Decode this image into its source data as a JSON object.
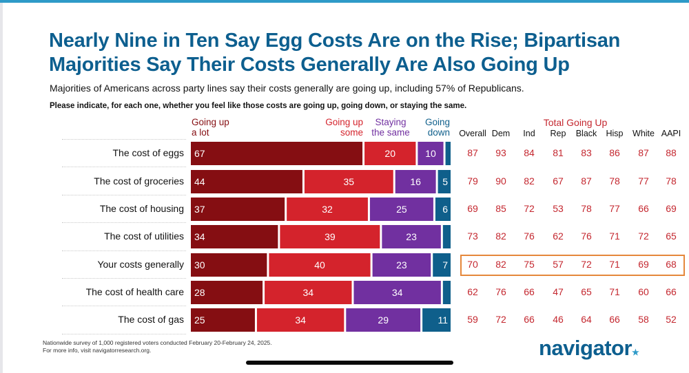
{
  "header": {
    "title_line1": "Nearly Nine in Ten Say Egg Costs Are on the Rise; Bipartisan",
    "title_line2": "Majorities Say Their Costs Generally Are Also Going Up",
    "subtitle": "Majorities of Americans across party lines say their costs generally are going up, including 57% of Republicans.",
    "question": "Please indicate, for each one, whether you feel like those costs are going up, going down, or staying the same."
  },
  "colors": {
    "going_up_a_lot": "#850e12",
    "going_up_some": "#d4232c",
    "staying_the_same": "#7130a0",
    "going_down": "#0f5f8b",
    "total_text": "#c4272f",
    "highlight": "#e5873a",
    "title": "#0d5f8f"
  },
  "chart_data": {
    "type": "bar",
    "orientation": "horizontal",
    "stacked": true,
    "title": "Nearly Nine in Ten Say Egg Costs Are on the Rise; Bipartisan Majorities Say Their Costs Generally Are Also Going Up",
    "categories": [
      "The cost of eggs",
      "The cost of groceries",
      "The cost of housing",
      "The cost of utilities",
      "Your costs generally",
      "The cost of health care",
      "The cost of gas"
    ],
    "series": [
      {
        "name": "Going up a lot",
        "legend_line1": "Going up",
        "legend_line2": "a lot",
        "values": [
          67,
          44,
          37,
          34,
          30,
          28,
          25
        ],
        "labels": [
          "67",
          "44",
          "37",
          "34",
          "30",
          "28",
          "25"
        ]
      },
      {
        "name": "Going up some",
        "legend_line1": "Going up",
        "legend_line2": "some",
        "values": [
          20,
          35,
          32,
          39,
          40,
          34,
          34
        ],
        "labels": [
          "20",
          "35",
          "32",
          "39",
          "40",
          "34",
          "34"
        ]
      },
      {
        "name": "Staying the same",
        "legend_line1": "Staying",
        "legend_line2": "the same",
        "values": [
          10,
          16,
          25,
          23,
          23,
          34,
          29
        ],
        "labels": [
          "10",
          "16",
          "25",
          "23",
          "23",
          "34",
          "29"
        ]
      },
      {
        "name": "Going down",
        "legend_line1": "Going",
        "legend_line2": "down",
        "values": [
          2,
          5,
          6,
          3,
          7,
          3,
          11
        ],
        "labels": [
          "",
          "5",
          "6",
          "",
          "7",
          "",
          "11"
        ]
      }
    ],
    "xlim": [
      0,
      100
    ],
    "table": {
      "header": "Total Going Up",
      "columns": [
        "Overall",
        "Dem",
        "Ind",
        "Rep",
        "Black",
        "Hisp",
        "White",
        "AAPI"
      ],
      "rows": [
        [
          87,
          93,
          84,
          81,
          83,
          86,
          87,
          88
        ],
        [
          79,
          90,
          82,
          67,
          87,
          78,
          77,
          78
        ],
        [
          69,
          85,
          72,
          53,
          78,
          77,
          66,
          69
        ],
        [
          73,
          82,
          76,
          62,
          76,
          71,
          72,
          65
        ],
        [
          70,
          82,
          75,
          57,
          72,
          71,
          69,
          68
        ],
        [
          62,
          76,
          66,
          47,
          65,
          71,
          60,
          66
        ],
        [
          59,
          72,
          66,
          46,
          64,
          66,
          58,
          52
        ]
      ],
      "highlighted_row": "Your costs generally"
    }
  },
  "footer": {
    "note_line1": "Nationwide survey of 1,000 registered voters conducted February 20-February 24, 2025.",
    "note_line2": "For more info, visit navigatorresearch.org.",
    "logo_text": "navigator",
    "logo_mark": "★"
  }
}
